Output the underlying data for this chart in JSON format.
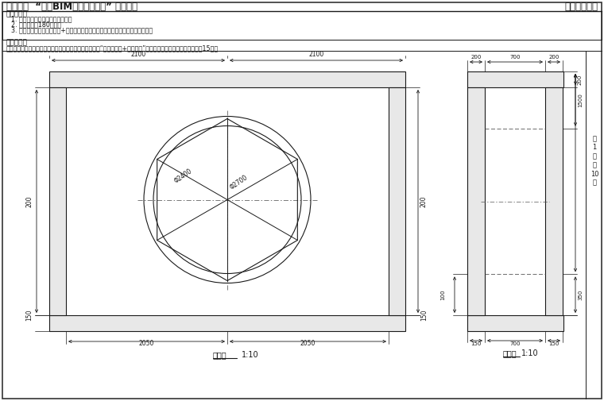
{
  "title": "第十四期  “全国BIM技能等级考试” 一级试题",
  "title_right": "中国图学学会",
  "exam_req_title": "考试要求：",
  "exam_req1": "1. 考试方式：计算机操作，闭卷；",
  "exam_req2": "2. 考试时间为180分钟；",
  "exam_req3": "3. 新建文件夹（以准考证号+姓名命名），用于存放本次考试中生成的全部文件。",
  "problem_title": "试题部分：",
  "problem_desc": "一、根据给定尺寸建立六边形门洞模型，请将模型文件以“六边形门洞+考生姓名”为文件名保存到考生文件夹中。（15分）",
  "main_view_label": "主视图",
  "main_view_scale": "1:10",
  "side_view_label": "剖视图",
  "side_view_scale": "1:10",
  "side_page_text": [
    "第",
    "1",
    "页",
    "共",
    "10",
    "页"
  ],
  "phi2400": "φ2400",
  "phi2700": "φ2700",
  "bg_color": "#ffffff",
  "line_color": "#1a1a1a",
  "dim_color": "#1a1a1a",
  "text_color": "#1a1a1a",
  "gray_fill": "#e8e8e8"
}
